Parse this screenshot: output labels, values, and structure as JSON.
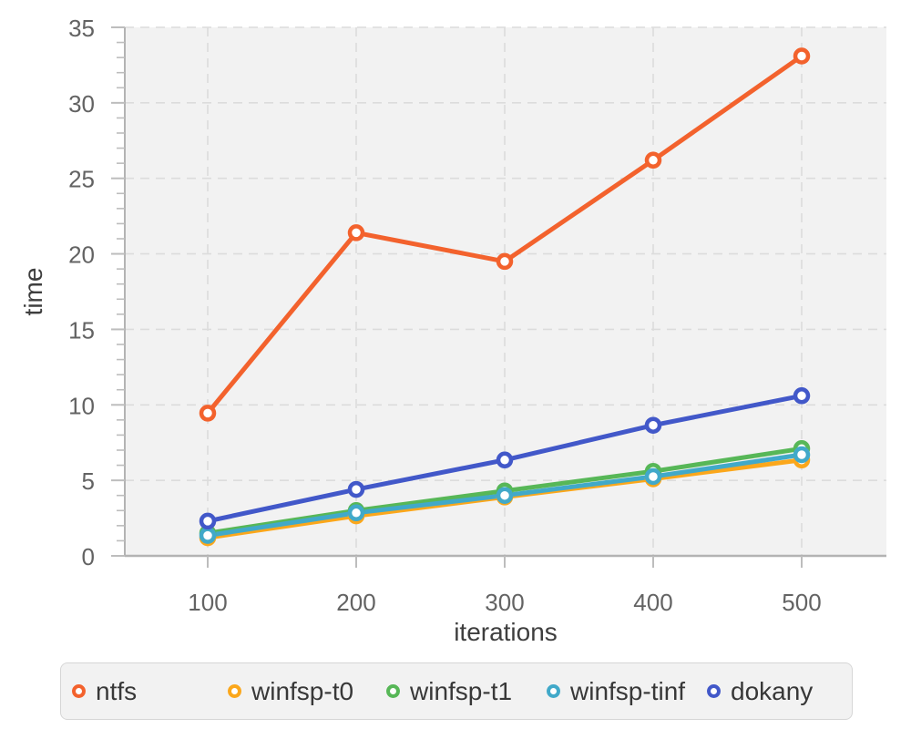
{
  "chart_data": {
    "type": "line",
    "title": "",
    "xlabel": "iterations",
    "ylabel": "time",
    "x": [
      100,
      200,
      300,
      400,
      500
    ],
    "x_ticks": [
      100,
      200,
      300,
      400,
      500
    ],
    "y_ticks": [
      0,
      5,
      10,
      15,
      20,
      25,
      30,
      35
    ],
    "ylim": [
      0,
      35
    ],
    "y_minor_tick_step": 1,
    "grid": "dashed",
    "legend_position": "bottom",
    "series": [
      {
        "name": "ntfs",
        "color": "#f3622d",
        "values": [
          9.45,
          21.4,
          19.5,
          26.2,
          33.1
        ]
      },
      {
        "name": "winfsp-t0",
        "color": "#fba71b",
        "values": [
          1.2,
          2.65,
          3.9,
          5.1,
          6.35
        ]
      },
      {
        "name": "winfsp-t1",
        "color": "#57b757",
        "values": [
          1.5,
          3.0,
          4.3,
          5.6,
          7.1
        ]
      },
      {
        "name": "winfsp-tinf",
        "color": "#41a9c9",
        "values": [
          1.35,
          2.85,
          4.0,
          5.25,
          6.7
        ]
      },
      {
        "name": "dokany",
        "color": "#4258c9",
        "values": [
          2.3,
          4.4,
          6.35,
          8.65,
          10.6
        ]
      }
    ]
  },
  "style": {
    "plot_background": "#f2f2f2",
    "gridline_color": "#dcdcdc",
    "axis_line_color": "#b3b3b3",
    "tick_mark_color": "#bdbdbd",
    "tick_label_color": "#636363",
    "axis_label_color": "#3e3e3e",
    "legend_background": "#f2f2f2",
    "legend_border": "#d6d6d6",
    "legend_text_color": "#383838",
    "marker_fill": "#ffffff"
  }
}
